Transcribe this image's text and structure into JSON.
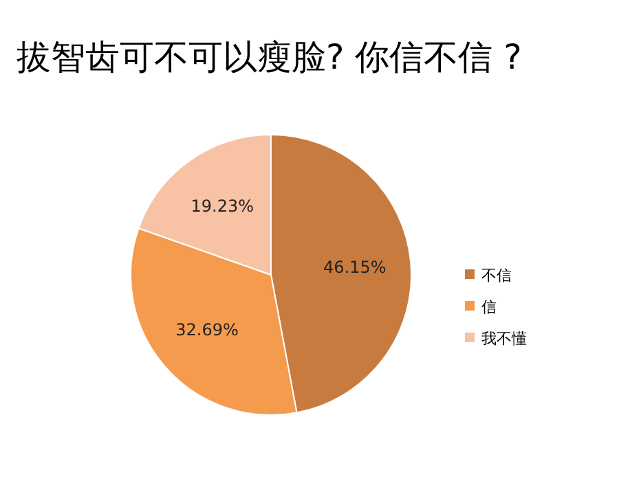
{
  "chart_data": {
    "type": "pie",
    "title": "拔智齿可不可以瘦脸? 你信不信 ?",
    "categories": [
      "不信",
      "信",
      "我不懂"
    ],
    "values": [
      46.15,
      32.69,
      19.23
    ],
    "value_labels": [
      "46.15%",
      "32.69%",
      "19.23%"
    ],
    "colors": [
      "#c87b3e",
      "#f59b4e",
      "#f8c2a4"
    ],
    "legend": "right"
  }
}
